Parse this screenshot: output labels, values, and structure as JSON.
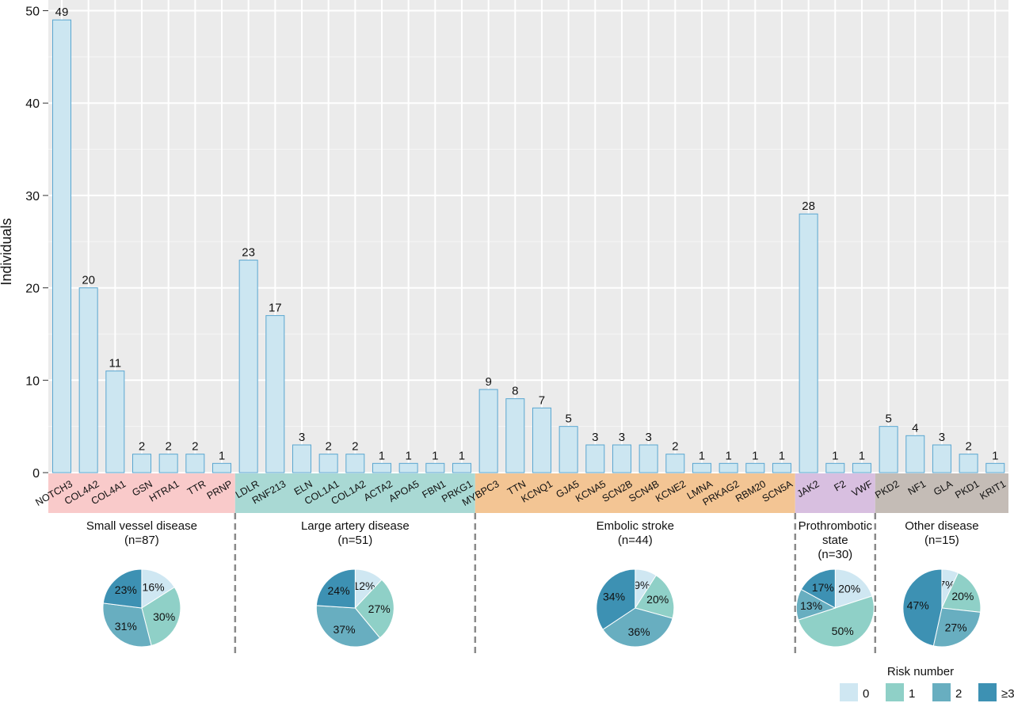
{
  "chart_data": {
    "type": "bar",
    "ylabel": "Individuals",
    "ylim": [
      0,
      51
    ],
    "y_ticks": [
      0,
      10,
      20,
      30,
      40,
      50
    ],
    "grid": true,
    "groups": [
      {
        "name_lines": [
          "Small vessel disease",
          "(n=87)"
        ],
        "color": "#f9caca",
        "genes": [
          "NOTCH3",
          "COL4A2",
          "COL4A1",
          "GSN",
          "HTRA1",
          "TTR",
          "PRNP"
        ],
        "values": [
          49,
          20,
          11,
          2,
          2,
          2,
          1
        ],
        "risk_pie": [
          16,
          30,
          31,
          23
        ]
      },
      {
        "name_lines": [
          "Large artery disease",
          "(n=51)"
        ],
        "color": "#a9d9d4",
        "genes": [
          "LDLR",
          "RNF213",
          "ELN",
          "COL1A1",
          "COL1A2",
          "ACTA2",
          "APOA5",
          "FBN1",
          "PRKG1"
        ],
        "values": [
          23,
          17,
          3,
          2,
          2,
          1,
          1,
          1,
          1
        ],
        "risk_pie": [
          12,
          27,
          37,
          24
        ]
      },
      {
        "name_lines": [
          "Embolic stroke",
          "(n=44)"
        ],
        "color": "#f3c594",
        "genes": [
          "MYBPC3",
          "TTN",
          "KCNQ1",
          "GJA5",
          "KCNA5",
          "SCN2B",
          "SCN4B",
          "KCNE2",
          "LMNA",
          "PRKAG2",
          "RBM20",
          "SCN5A"
        ],
        "values": [
          9,
          8,
          7,
          5,
          3,
          3,
          3,
          2,
          1,
          1,
          1,
          1
        ],
        "risk_pie": [
          9,
          20,
          36,
          34
        ]
      },
      {
        "name_lines": [
          "Prothrombotic",
          "state",
          "(n=30)"
        ],
        "color": "#d8bfe0",
        "genes": [
          "JAK2",
          "F2",
          "VWF"
        ],
        "values": [
          28,
          1,
          1
        ],
        "risk_pie": [
          20,
          50,
          13,
          17
        ]
      },
      {
        "name_lines": [
          "Other disease",
          "(n=15)"
        ],
        "color": "#c4bcb6",
        "genes": [
          "PKD2",
          "NF1",
          "GLA",
          "PKD1",
          "KRIT1"
        ],
        "values": [
          5,
          4,
          3,
          2,
          1
        ],
        "risk_pie": [
          7,
          20,
          27,
          47
        ]
      }
    ],
    "legend": {
      "title": "Risk number",
      "placement": "bottom-right",
      "categories": [
        "0",
        "1",
        "2",
        "≥3"
      ],
      "colors": [
        "#cfe7f2",
        "#8fd0c7",
        "#68aec0",
        "#3d91b3"
      ]
    },
    "bar_fill": "#cce6f1",
    "bar_stroke": "#5aa6d0",
    "panel_bg": "#ebebeb"
  }
}
